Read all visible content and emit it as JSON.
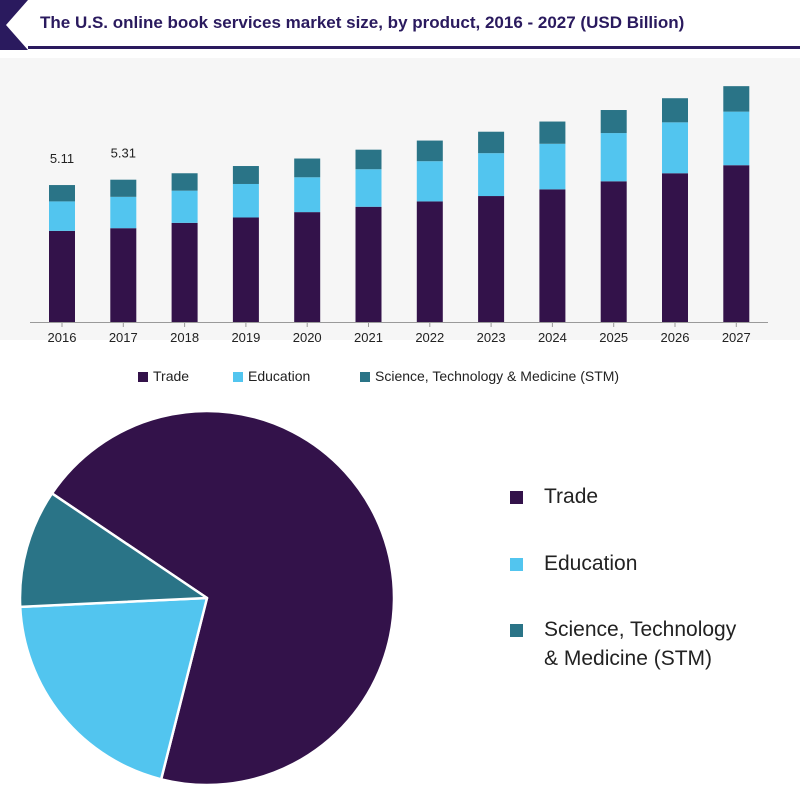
{
  "title": "The U.S. online book services market size, by product, 2016 - 2027 (USD Billion)",
  "colors": {
    "trade": "#33124a",
    "education": "#52c5ef",
    "stm": "#2a7487",
    "title": "#2a1a5e"
  },
  "chart_data": [
    {
      "type": "bar",
      "stacked": true,
      "categories": [
        "2016",
        "2017",
        "2018",
        "2019",
        "2020",
        "2021",
        "2022",
        "2023",
        "2024",
        "2025",
        "2026",
        "2027"
      ],
      "series": [
        {
          "name": "Trade",
          "values": [
            3.4,
            3.5,
            3.7,
            3.9,
            4.1,
            4.3,
            4.5,
            4.7,
            4.95,
            5.25,
            5.55,
            5.85
          ]
        },
        {
          "name": "Education",
          "values": [
            1.1,
            1.17,
            1.2,
            1.25,
            1.3,
            1.4,
            1.5,
            1.6,
            1.7,
            1.8,
            1.9,
            2.0
          ]
        },
        {
          "name": "Science, Technology & Medicine (STM)",
          "values": [
            0.61,
            0.64,
            0.65,
            0.67,
            0.7,
            0.73,
            0.77,
            0.8,
            0.83,
            0.86,
            0.9,
            0.95
          ]
        }
      ],
      "data_labels": [
        "5.11",
        "5.31",
        "",
        "",
        "",
        "",
        "",
        "",
        "",
        "",
        "",
        ""
      ],
      "ylim": [
        0,
        10
      ],
      "grid": false,
      "legend_position": "bottom"
    },
    {
      "type": "pie",
      "labels": [
        "Trade",
        "Education",
        "Science, Technology & Medicine (STM)"
      ],
      "values": [
        69.5,
        20.3,
        10.2
      ],
      "legend_position": "right"
    }
  ],
  "legend_bar": [
    "Trade",
    "Education",
    "Science, Technology & Medicine (STM)"
  ],
  "legend_pie": [
    "Trade",
    "Education",
    "Science, Technology & Medicine (STM)"
  ],
  "legend_pie_stm_lines": [
    "Science, Technology",
    "& Medicine (STM)"
  ]
}
